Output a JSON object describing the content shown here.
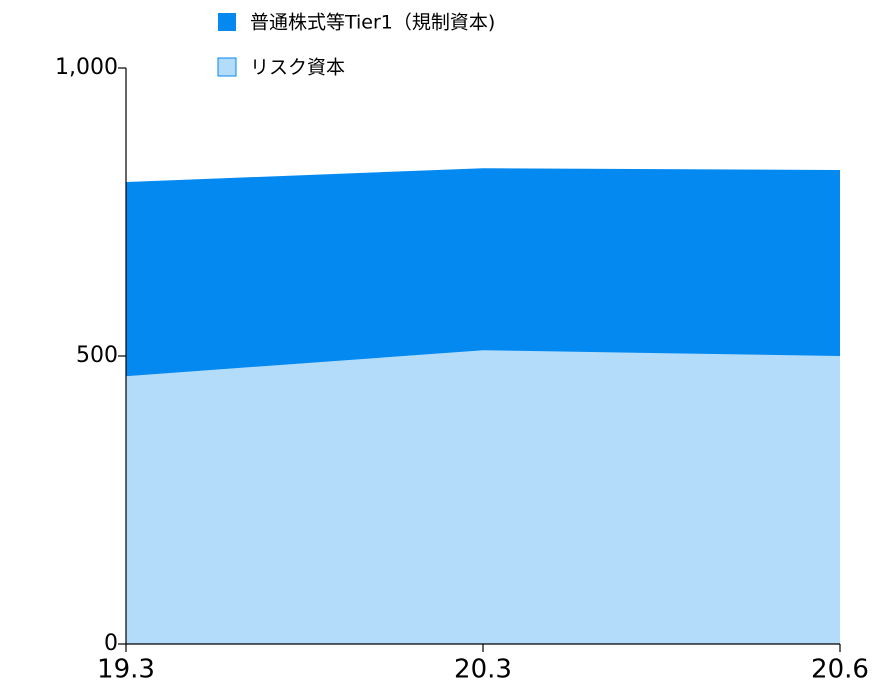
{
  "chart_data": {
    "type": "area",
    "x": [
      "19.3",
      "20.3",
      "20.6"
    ],
    "series": [
      {
        "name": "普通株式等Tier1（規制資本)",
        "color": "#0489f0",
        "values": [
          802,
          826,
          823
        ]
      },
      {
        "name": "リスク資本",
        "color": "#b3dcfa",
        "values": [
          465,
          510,
          500
        ]
      }
    ],
    "ylim": [
      0,
      1000
    ],
    "yticks": [
      0,
      500,
      {
        "value": 1000,
        "label": "1,000"
      }
    ],
    "legend": "top"
  }
}
